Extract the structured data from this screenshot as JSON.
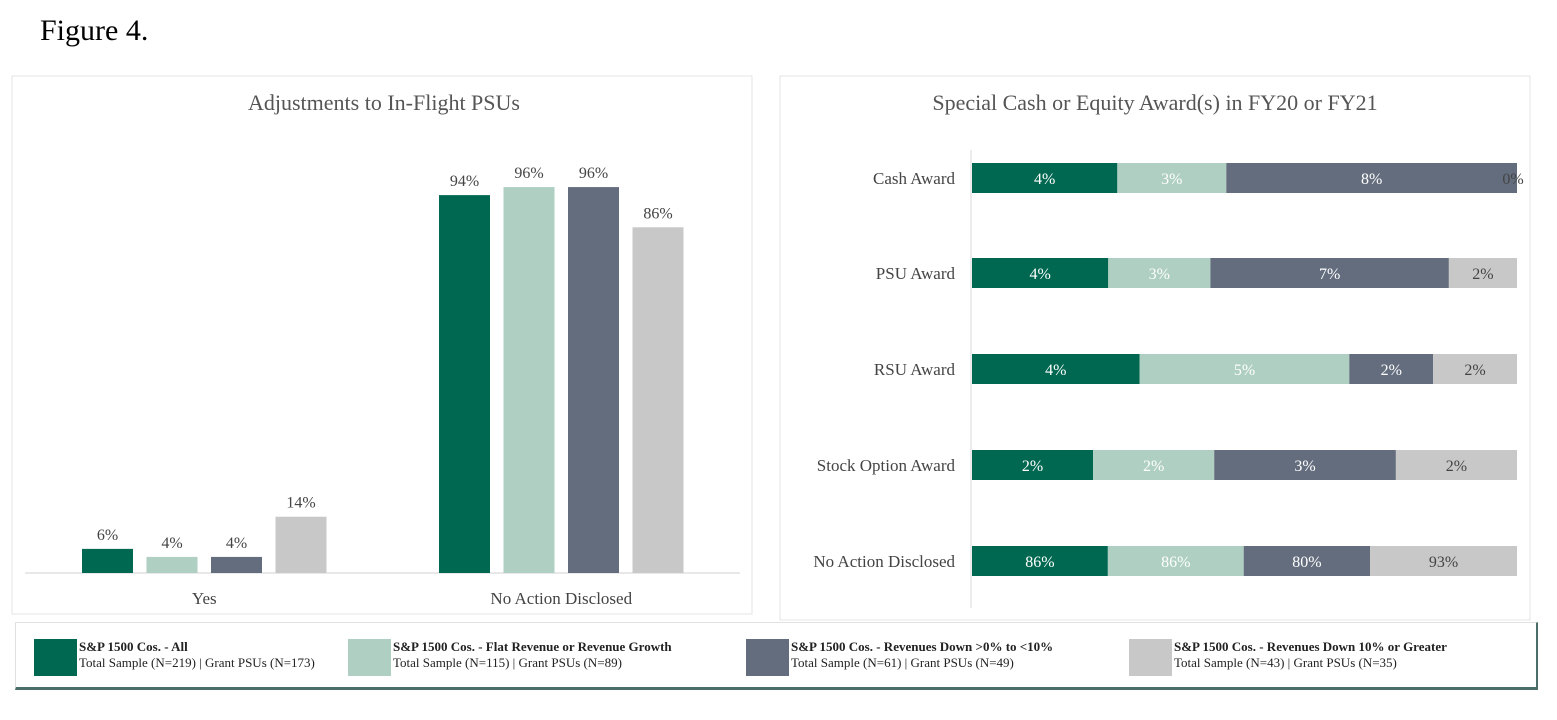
{
  "figure_title": "Figure 4.",
  "legend": [
    {
      "name": "S&P 1500 Cos. - All",
      "sub": "Total Sample (N=219) | Grant PSUs (N=173)",
      "color": "#006850"
    },
    {
      "name": "S&P 1500 Cos. - Flat Revenue or Revenue Growth",
      "sub": "Total Sample (N=115) | Grant PSUs (N=89)",
      "color": "#aecfc1"
    },
    {
      "name": "S&P 1500 Cos. - Revenues Down >0% to <10%",
      "sub": "Total Sample (N=61) | Grant PSUs (N=49)",
      "color": "#646d7d"
    },
    {
      "name": "S&P 1500 Cos. - Revenues Down 10% or Greater",
      "sub": "Total Sample (N=43) | Grant PSUs (N=35)",
      "color": "#c8c8c8"
    }
  ],
  "chart_data": [
    {
      "type": "bar",
      "title": "Adjustments to In-Flight PSUs",
      "categories": [
        "Yes",
        "No Action Disclosed"
      ],
      "series": [
        {
          "name": "S&P 1500 Cos. - All",
          "values": [
            6,
            94
          ]
        },
        {
          "name": "S&P 1500 Cos. - Flat Revenue or Revenue Growth",
          "values": [
            4,
            96
          ]
        },
        {
          "name": "S&P 1500 Cos. - Revenues Down >0% to <10%",
          "values": [
            4,
            96
          ]
        },
        {
          "name": "S&P 1500 Cos. - Revenues Down 10% or Greater",
          "values": [
            14,
            86
          ]
        }
      ],
      "unit": "%",
      "ylim": [
        0,
        100
      ],
      "grid": false
    },
    {
      "type": "bar",
      "orientation": "horizontal-stacked",
      "title": "Special Cash or Equity Award(s) in FY20 or FY21",
      "categories": [
        "Cash Award",
        "PSU Award",
        "RSU Award",
        "Stock Option Award",
        "No Action Disclosed"
      ],
      "series": [
        {
          "name": "S&P 1500 Cos. - All",
          "values": [
            4,
            4,
            4,
            2,
            86
          ]
        },
        {
          "name": "S&P 1500 Cos. - Flat Revenue or Revenue Growth",
          "values": [
            3,
            3,
            5,
            2,
            86
          ]
        },
        {
          "name": "S&P 1500 Cos. - Revenues Down >0% to <10%",
          "values": [
            8,
            7,
            2,
            3,
            80
          ]
        },
        {
          "name": "S&P 1500 Cos. - Revenues Down 10% or Greater",
          "values": [
            0,
            2,
            2,
            2,
            93
          ]
        }
      ],
      "unit": "%",
      "grid": false
    }
  ]
}
